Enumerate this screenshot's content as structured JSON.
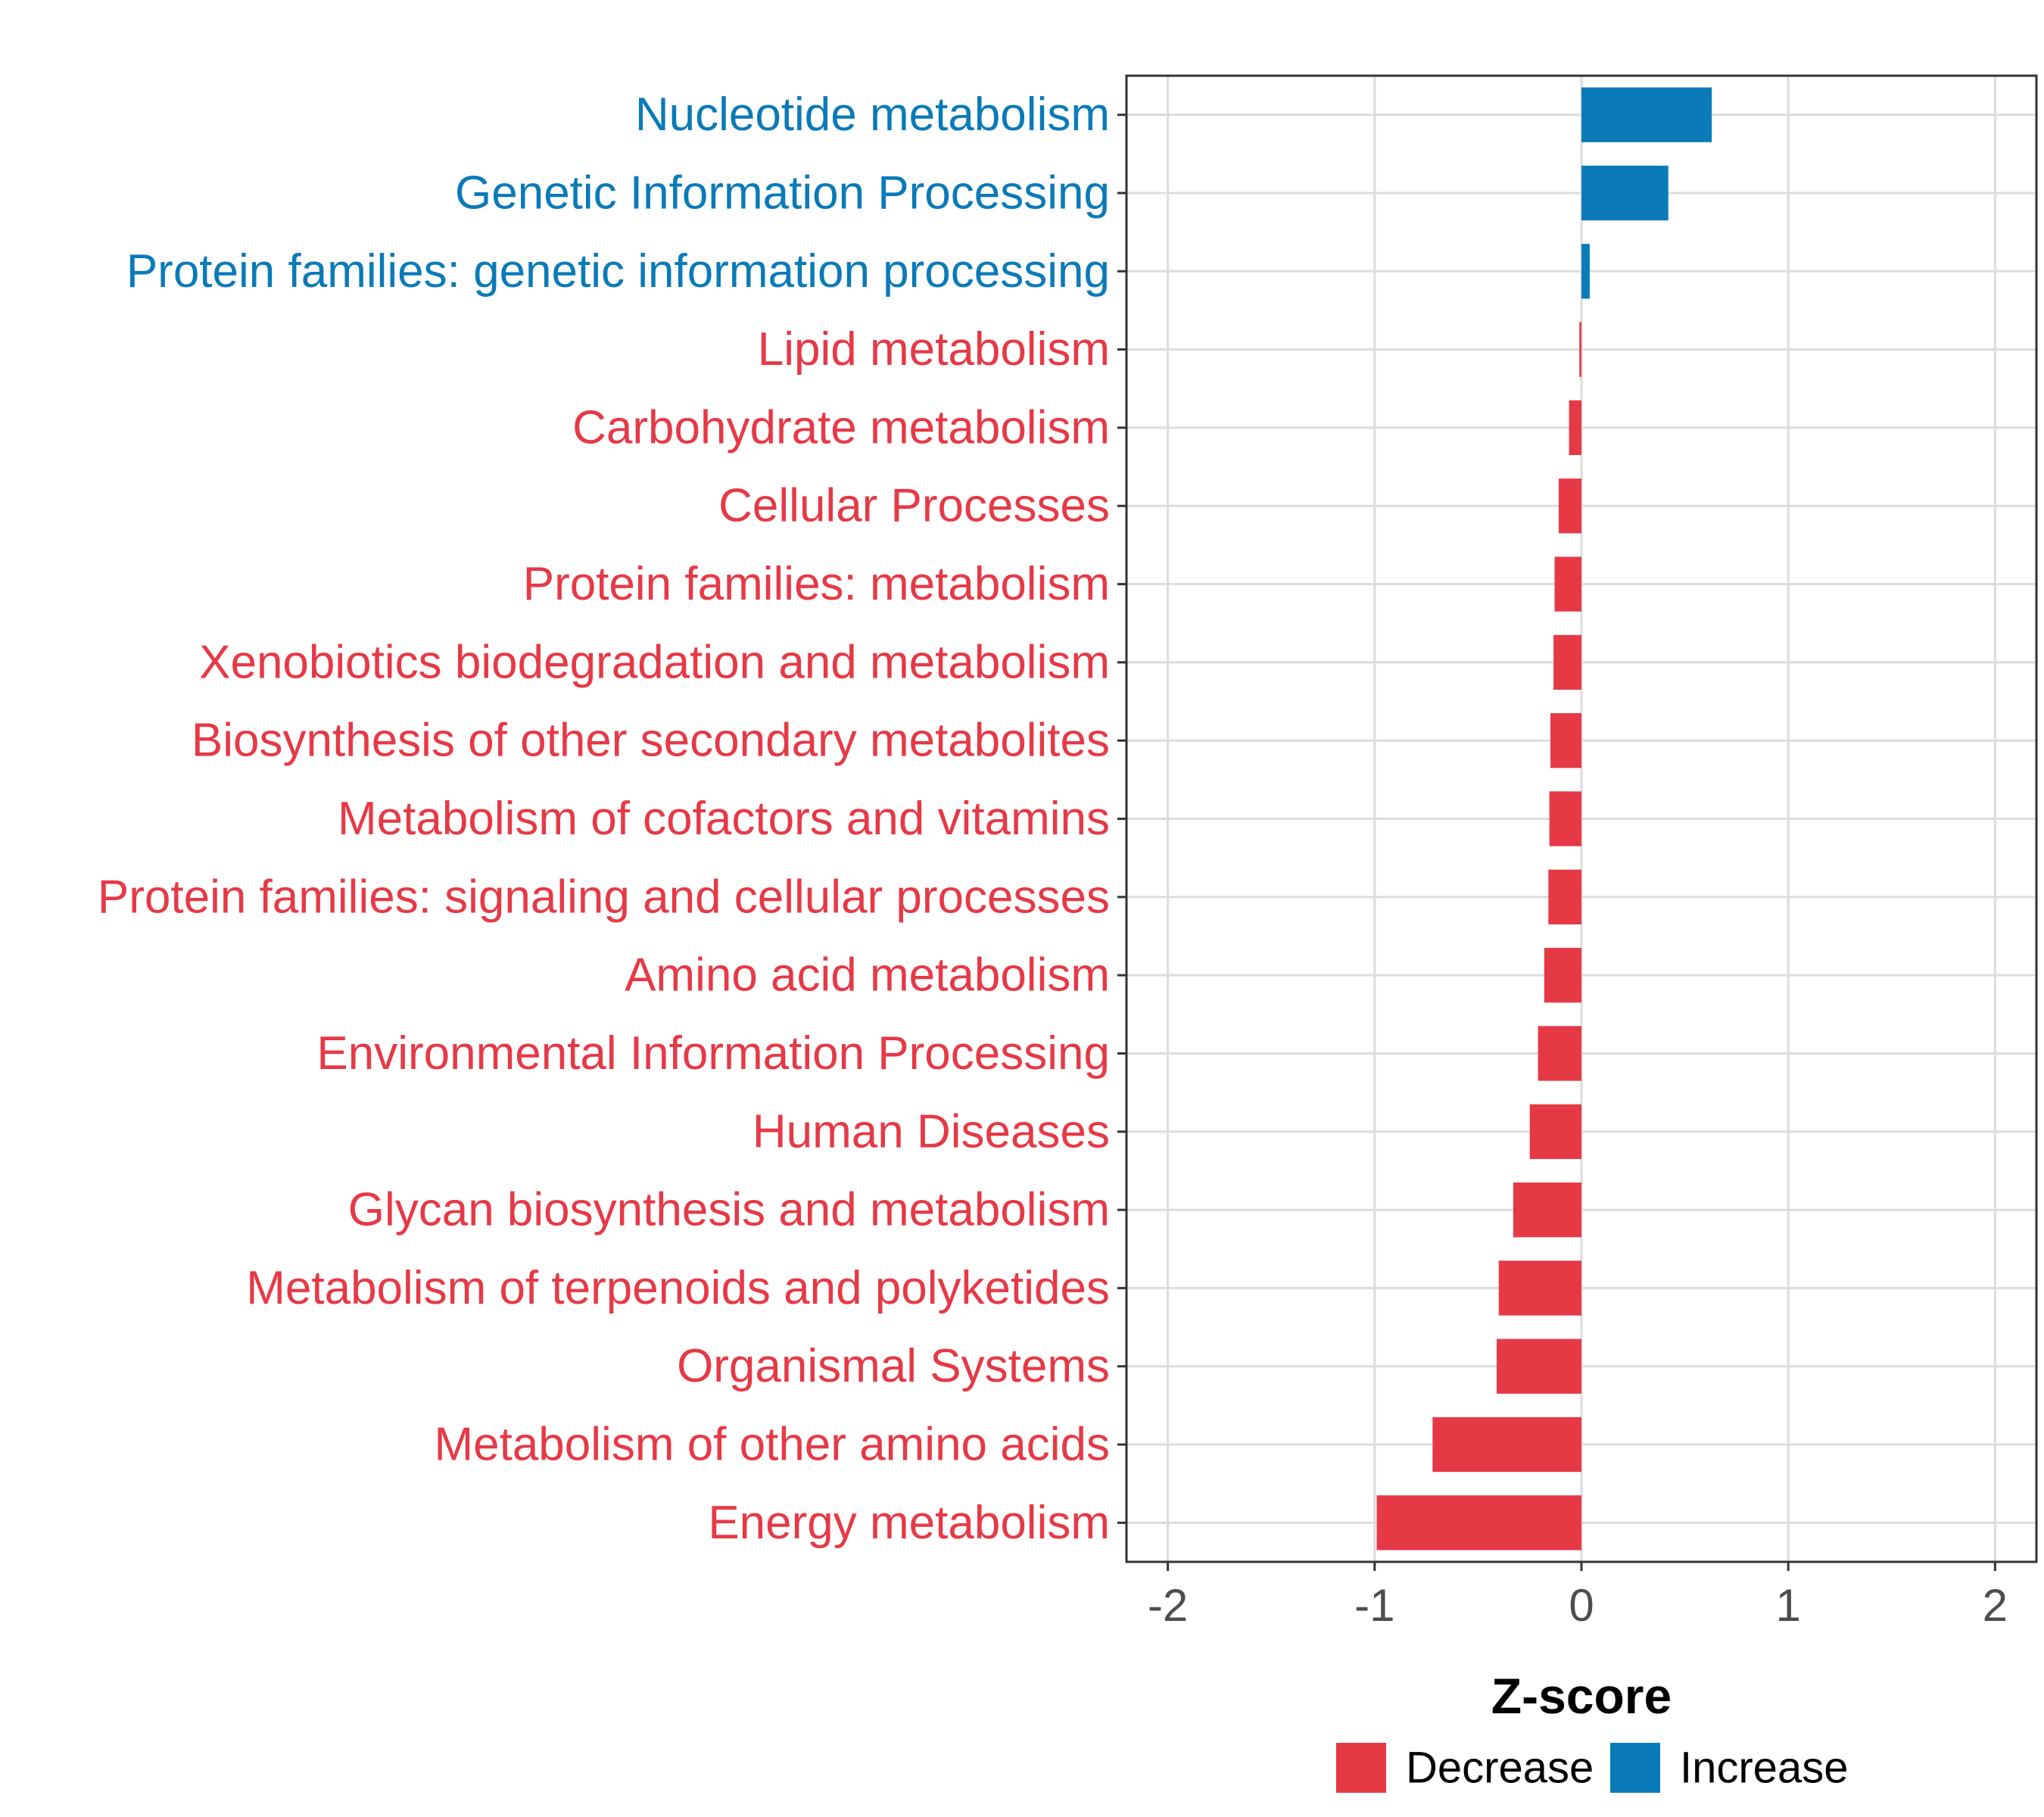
{
  "chart_data": {
    "type": "bar",
    "orientation": "horizontal",
    "title": "",
    "xlabel": "Z-score",
    "ylabel": "",
    "xlim": [
      -2.2,
      2.2
    ],
    "x_ticks": [
      -2,
      -1,
      0,
      1,
      2
    ],
    "x_tick_labels": [
      "-2",
      "-1",
      "0",
      "1",
      "2"
    ],
    "grid": true,
    "legend_position": "bottom",
    "colors": {
      "Decrease": "#e63946",
      "Increase": "#0a7ab8"
    },
    "legend": [
      {
        "name": "Decrease",
        "color": "#e63946"
      },
      {
        "name": "Increase",
        "color": "#0a7ab8"
      }
    ],
    "categories": [
      "Nucleotide metabolism",
      "Genetic Information Processing",
      "Protein families: genetic information processing",
      "Lipid metabolism",
      "Carbohydrate metabolism",
      "Cellular Processes",
      "Protein families: metabolism",
      "Xenobiotics biodegradation and metabolism",
      "Biosynthesis of other secondary metabolites",
      "Metabolism of cofactors and vitamins",
      "Protein families: signaling and cellular processes",
      "Amino acid metabolism",
      "Environmental Information Processing",
      "Human Diseases",
      "Glycan biosynthesis and metabolism",
      "Metabolism of terpenoids and polyketides",
      "Organismal Systems",
      "Metabolism of other amino acids",
      "Energy metabolism"
    ],
    "values": [
      0.63,
      0.42,
      0.04,
      -0.01,
      -0.06,
      -0.11,
      -0.13,
      -0.135,
      -0.15,
      -0.155,
      -0.16,
      -0.18,
      -0.21,
      -0.25,
      -0.33,
      -0.4,
      -0.41,
      -0.72,
      -0.99
    ],
    "groups": [
      "Increase",
      "Increase",
      "Increase",
      "Decrease",
      "Decrease",
      "Decrease",
      "Decrease",
      "Decrease",
      "Decrease",
      "Decrease",
      "Decrease",
      "Decrease",
      "Decrease",
      "Decrease",
      "Decrease",
      "Decrease",
      "Decrease",
      "Decrease",
      "Decrease"
    ]
  }
}
